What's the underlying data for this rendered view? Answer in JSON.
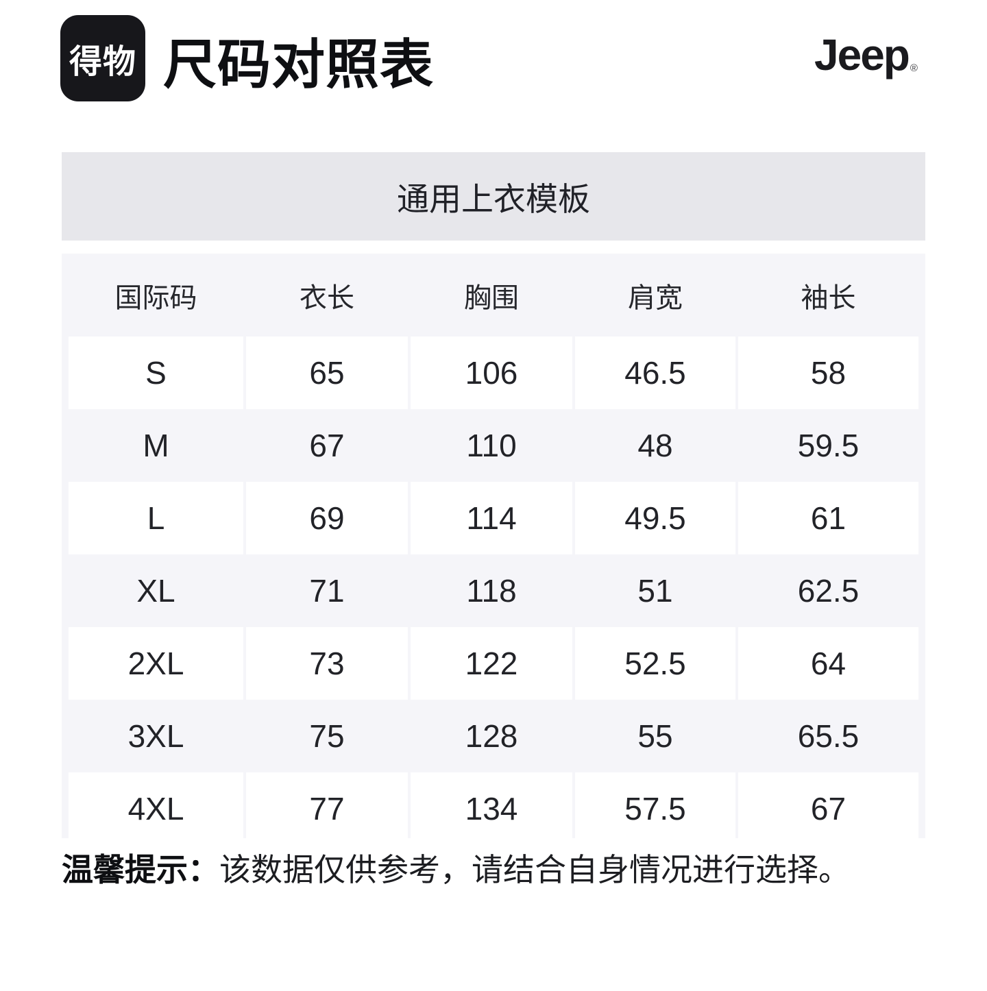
{
  "header": {
    "logo_text": "得物",
    "title": "尺码对照表",
    "brand": "Jeep",
    "brand_registered": "®"
  },
  "banner": {
    "label": "通用上衣模板"
  },
  "table": {
    "columns": [
      "国际码",
      "衣长",
      "胸围",
      "肩宽",
      "袖长"
    ],
    "rows": [
      {
        "size": "S",
        "values": [
          "65",
          "106",
          "46.5",
          "58"
        ]
      },
      {
        "size": "M",
        "values": [
          "67",
          "110",
          "48",
          "59.5"
        ]
      },
      {
        "size": "L",
        "values": [
          "69",
          "114",
          "49.5",
          "61"
        ]
      },
      {
        "size": "XL",
        "values": [
          "71",
          "118",
          "51",
          "62.5"
        ]
      },
      {
        "size": "2XL",
        "values": [
          "73",
          "122",
          "52.5",
          "64"
        ]
      },
      {
        "size": "3XL",
        "values": [
          "75",
          "128",
          "55",
          "65.5"
        ]
      },
      {
        "size": "4XL",
        "values": [
          "77",
          "134",
          "57.5",
          "67"
        ]
      }
    ]
  },
  "footer": {
    "notice_label": "温馨提示：",
    "notice_text": "该数据仅供参考，请结合自身情况进行选择。"
  },
  "colors": {
    "banner_bg": "#e7e7eb",
    "table_bg": "#f5f5f9",
    "cell_bg": "#ffffff",
    "logo_bg": "#17171b",
    "text": "#1b1c20"
  }
}
